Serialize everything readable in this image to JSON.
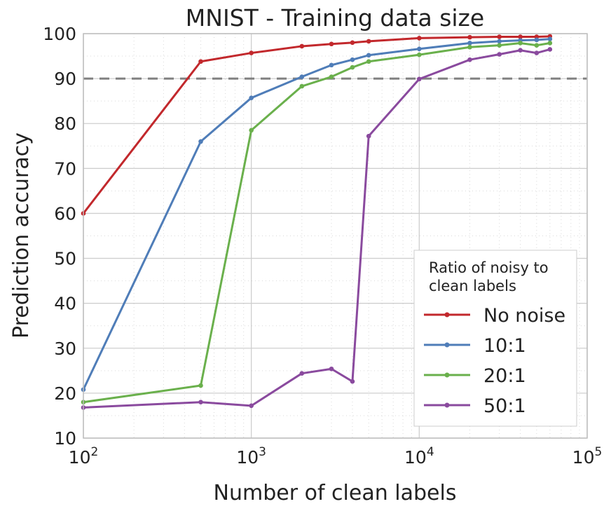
{
  "chart_data": {
    "type": "line",
    "title": "MNIST - Training data size",
    "xlabel": "Number of clean labels",
    "ylabel": "Prediction accuracy",
    "xscale": "log",
    "xlim": [
      100,
      100000
    ],
    "ylim": [
      10,
      100
    ],
    "yticks": [
      "10",
      "20",
      "30",
      "40",
      "50",
      "60",
      "70",
      "80",
      "90",
      "100"
    ],
    "xticks": [
      {
        "base": "10",
        "exp": "2"
      },
      {
        "base": "10",
        "exp": "3"
      },
      {
        "base": "10",
        "exp": "4"
      },
      {
        "base": "10",
        "exp": "5"
      }
    ],
    "grid": true,
    "reference_line": {
      "y": 90,
      "style": "dashed",
      "color": "#808080"
    },
    "legend": {
      "title_lines": [
        "Ratio of noisy to",
        "clean labels"
      ],
      "position": "lower-right"
    },
    "series": [
      {
        "name": "No noise",
        "color": "#c2282c",
        "x": [
          100,
          500,
          1000,
          2000,
          3000,
          4000,
          5000,
          10000,
          20000,
          30000,
          40000,
          50000,
          60000
        ],
        "y": [
          60.0,
          93.8,
          95.7,
          97.2,
          97.7,
          98.0,
          98.3,
          99.0,
          99.2,
          99.3,
          99.3,
          99.3,
          99.4
        ]
      },
      {
        "name": "10:1",
        "color": "#4f7db8",
        "x": [
          100,
          500,
          1000,
          2000,
          3000,
          4000,
          5000,
          10000,
          20000,
          30000,
          40000,
          50000,
          60000
        ],
        "y": [
          20.8,
          76.0,
          85.7,
          90.4,
          93.0,
          94.2,
          95.2,
          96.6,
          97.9,
          98.3,
          98.5,
          98.6,
          98.8
        ]
      },
      {
        "name": "20:1",
        "color": "#6ab04c",
        "x": [
          100,
          500,
          1000,
          2000,
          3000,
          4000,
          5000,
          10000,
          20000,
          30000,
          40000,
          50000,
          60000
        ],
        "y": [
          18.0,
          21.7,
          78.5,
          88.3,
          90.4,
          92.5,
          93.8,
          95.3,
          97.0,
          97.4,
          97.9,
          97.4,
          97.9
        ]
      },
      {
        "name": "50:1",
        "color": "#8a4a9e",
        "x": [
          100,
          500,
          1000,
          2000,
          3000,
          4000,
          5000,
          10000,
          20000,
          30000,
          40000,
          50000,
          60000
        ],
        "y": [
          16.8,
          18.0,
          17.2,
          24.4,
          25.4,
          22.6,
          77.2,
          89.9,
          94.2,
          95.4,
          96.3,
          95.7,
          96.5
        ]
      }
    ]
  }
}
